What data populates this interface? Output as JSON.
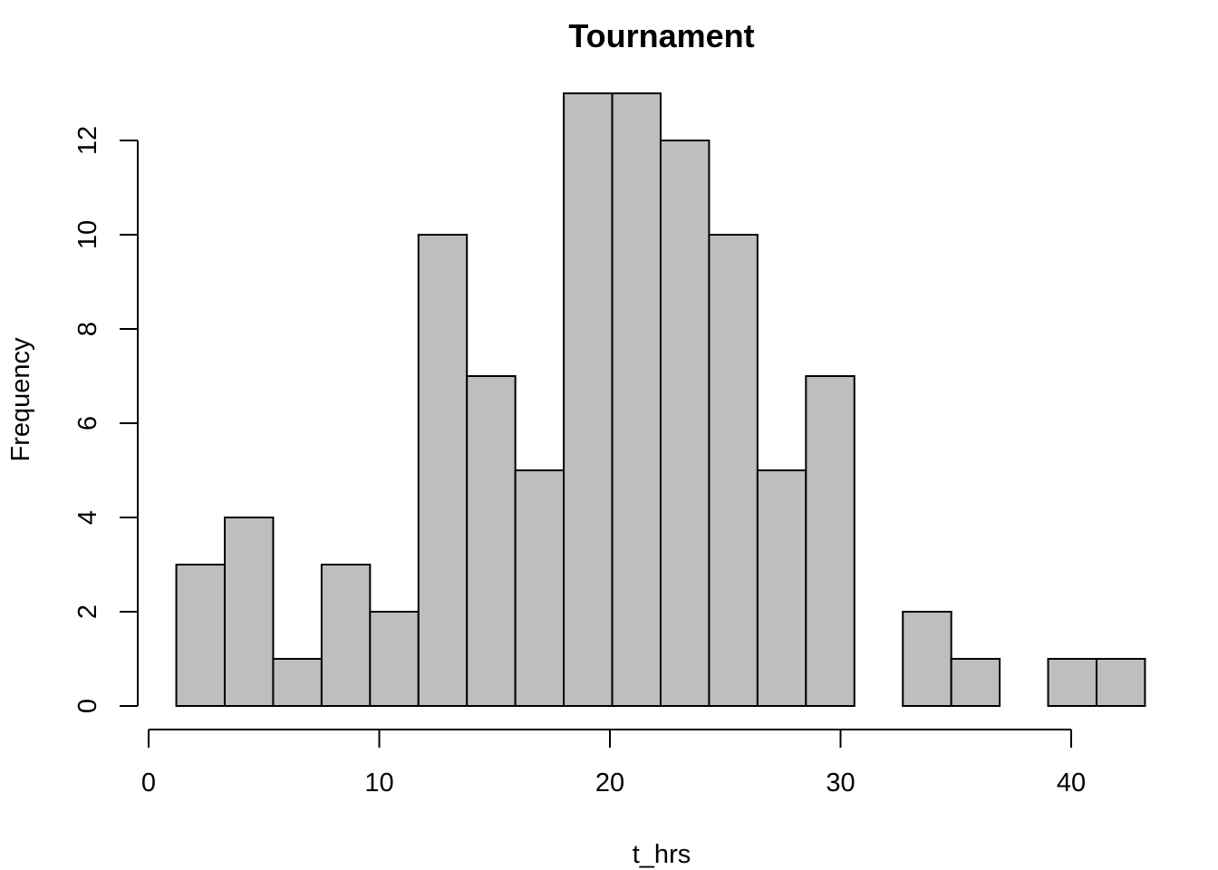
{
  "chart_data": {
    "type": "bar",
    "title": "Tournament",
    "xlabel": "t_hrs",
    "ylabel": "Frequency",
    "bin_start": 1.2,
    "bin_width": 2.1,
    "values": [
      3,
      4,
      1,
      3,
      2,
      10,
      7,
      5,
      13,
      13,
      12,
      10,
      5,
      7,
      0,
      2,
      1,
      0,
      1,
      1
    ],
    "xlim": [
      0,
      43.2
    ],
    "ylim": [
      0,
      13
    ],
    "x_ticks": [
      0,
      10,
      20,
      30,
      40
    ],
    "y_ticks": [
      0,
      2,
      4,
      6,
      8,
      10,
      12
    ],
    "grid": false,
    "colors": {
      "bar_fill": "#bebebe",
      "bar_stroke": "#000000"
    }
  }
}
